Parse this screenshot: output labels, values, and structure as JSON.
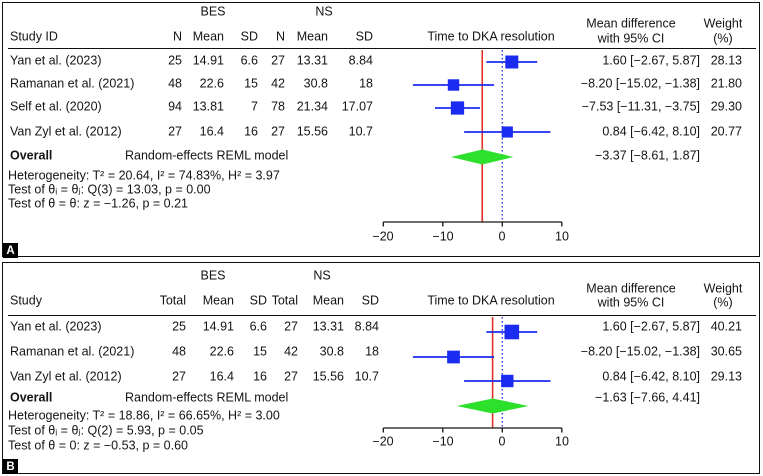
{
  "colors": {
    "marker_blue": "#1b2cf0",
    "ci_blue": "#1b2cf0",
    "null_line_blue": "#2a3cf0",
    "effect_line_red": "#e23227",
    "diamond_green": "#2ce02c",
    "axis_black": "#141414"
  },
  "chart_data": [
    {
      "type": "forest",
      "panel_label": "A",
      "title": "Time to DKA resolution",
      "group_headers": [
        "BES",
        "NS"
      ],
      "study_col_header": "Study ID",
      "col_headers": [
        "N",
        "Mean",
        "SD",
        "N",
        "Mean",
        "SD"
      ],
      "effect_header": [
        "Mean difference",
        "with 95% CI"
      ],
      "weight_header": [
        "Weight",
        "(%)"
      ],
      "xlim": [
        -20,
        10
      ],
      "x_ticks": [
        -20,
        -10,
        0,
        10
      ],
      "x_tick_labels": [
        "−20",
        "−10",
        "0",
        "10"
      ],
      "null_line": 0,
      "studies": [
        {
          "study": "Yan et al. (2023)",
          "cells": [
            "25",
            "14.91",
            "6.6",
            "27",
            "13.31",
            "8.84"
          ],
          "est": 1.6,
          "lo": -2.67,
          "hi": 5.87,
          "ci_text": "1.60 [−2.67, 5.87]",
          "weight": 28.13,
          "weight_text": "28.13"
        },
        {
          "study": "Ramanan et al. (2021)",
          "cells": [
            "48",
            "22.6",
            "15",
            "42",
            "30.8",
            "18"
          ],
          "est": -8.2,
          "lo": -15.02,
          "hi": -1.38,
          "ci_text": "−8.20 [−15.02, −1.38]",
          "weight": 21.8,
          "weight_text": "21.80"
        },
        {
          "study": "Self et al. (2020)",
          "cells": [
            "94",
            "13.81",
            "7",
            "78",
            "21.34",
            "17.07"
          ],
          "est": -7.53,
          "lo": -11.31,
          "hi": -3.75,
          "ci_text": "−7.53 [−11.31, −3.75]",
          "weight": 29.3,
          "weight_text": "29.30"
        },
        {
          "study": "Van Zyl et al. (2012)",
          "cells": [
            "27",
            "16.4",
            "16",
            "27",
            "15.56",
            "10.7"
          ],
          "est": 0.84,
          "lo": -6.42,
          "hi": 8.1,
          "ci_text": "0.84 [−6.42, 8.10]",
          "weight": 20.77,
          "weight_text": "20.77"
        }
      ],
      "overall": {
        "label": "Overall",
        "model": "Random-effects REML model",
        "est": -3.37,
        "lo": -8.61,
        "hi": 1.87,
        "ci_text": "−3.37 [−8.61, 1.87]"
      },
      "stats": [
        "Heterogeneity: T² = 20.64, I² = 74.83%, H² = 3.97",
        "Test of θᵢ = θⱼ: Q(3) = 13.03, p = 0.00",
        "Test of θ = θ: z = −1.26, p = 0.21"
      ]
    },
    {
      "type": "forest",
      "panel_label": "B",
      "title": "Time to DKA resolution",
      "group_headers": [
        "BES",
        "NS"
      ],
      "study_col_header": "Study",
      "col_headers": [
        "Total",
        "Mean",
        "SD",
        "Total",
        "Mean",
        "SD"
      ],
      "effect_header": [
        "Mean difference",
        "with 95% CI"
      ],
      "weight_header": [
        "Weight",
        "(%)"
      ],
      "xlim": [
        -20,
        10
      ],
      "x_ticks": [
        -20,
        -10,
        0,
        10
      ],
      "x_tick_labels": [
        "−20",
        "−10",
        "0",
        "10"
      ],
      "null_line": 0,
      "studies": [
        {
          "study": "Yan et al. (2023)",
          "cells": [
            "25",
            "14.91",
            "6.6",
            "27",
            "13.31",
            "8.84"
          ],
          "est": 1.6,
          "lo": -2.67,
          "hi": 5.87,
          "ci_text": "1.60 [−2.67, 5.87]",
          "weight": 40.21,
          "weight_text": "40.21"
        },
        {
          "study": "Ramanan et al. (2021)",
          "cells": [
            "48",
            "22.6",
            "15",
            "42",
            "30.8",
            "18"
          ],
          "est": -8.2,
          "lo": -15.02,
          "hi": -1.38,
          "ci_text": "−8.20 [−15.02, −1.38]",
          "weight": 30.65,
          "weight_text": "30.65"
        },
        {
          "study": "Van Zyl et al. (2012)",
          "cells": [
            "27",
            "16.4",
            "16",
            "27",
            "15.56",
            "10.7"
          ],
          "est": 0.84,
          "lo": -6.42,
          "hi": 8.1,
          "ci_text": "0.84 [−6.42, 8.10]",
          "weight": 29.13,
          "weight_text": "29.13"
        }
      ],
      "overall": {
        "label": "Overall",
        "model": "Random-effects REML model",
        "est": -1.63,
        "lo": -7.66,
        "hi": 4.41,
        "ci_text": "−1.63 [−7.66, 4.41]"
      },
      "stats": [
        "Heterogeneity: T² = 18.86, I² = 66.65%, H² = 3.00",
        "Test of θᵢ = θⱼ: Q(2) = 5.93, p = 0.05",
        "Test of θ = 0: z = −0.53, p = 0.60"
      ]
    }
  ]
}
